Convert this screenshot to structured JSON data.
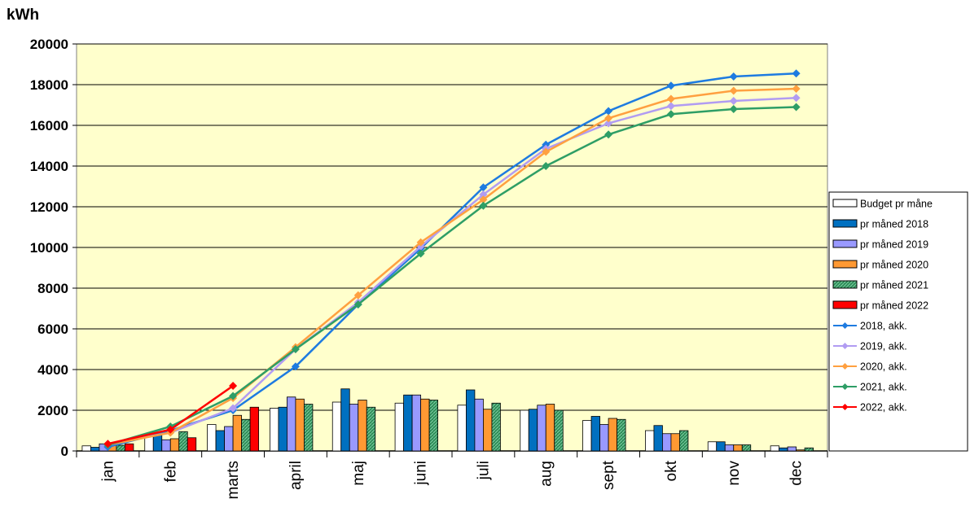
{
  "chart_data": {
    "type": "bar+line",
    "ylabel": "kWh",
    "ylim": [
      0,
      20000
    ],
    "yticks": [
      "0",
      "2000",
      "4000",
      "6000",
      "8000",
      "10000",
      "12000",
      "14000",
      "16000",
      "18000",
      "20000"
    ],
    "categories": [
      "jan",
      "feb",
      "marts",
      "april",
      "maj",
      "juni",
      "juli",
      "aug",
      "sept",
      "okt",
      "nov",
      "dec"
    ],
    "grid": true,
    "legend_position": "right",
    "plot_background": "#ffffcc",
    "bar_series": [
      {
        "name": "Budget pr måned",
        "color": "#ffffff",
        "values": [
          250,
          700,
          1300,
          2100,
          2400,
          2350,
          2250,
          2000,
          1500,
          1000,
          450,
          250
        ]
      },
      {
        "name": "pr måned 2018",
        "color": "#0070c0",
        "values": [
          180,
          800,
          1000,
          2150,
          3050,
          2750,
          3000,
          2050,
          1700,
          1250,
          450,
          150
        ]
      },
      {
        "name": "pr måned 2019",
        "color": "#9999ff",
        "values": [
          350,
          550,
          1200,
          2650,
          2300,
          2750,
          2550,
          2250,
          1300,
          850,
          300,
          200
        ]
      },
      {
        "name": "pr måned 2020",
        "color": "#ff9933",
        "values": [
          300,
          600,
          1750,
          2550,
          2500,
          2550,
          2050,
          2300,
          1600,
          850,
          300,
          50
        ]
      },
      {
        "name": "pr måned 2021",
        "color": "#2e8b57",
        "values": [
          280,
          950,
          1550,
          2300,
          2150,
          2500,
          2350,
          2000,
          1550,
          1000,
          300,
          150
        ]
      },
      {
        "name": "pr måned 2022",
        "color": "#ff0000",
        "values": [
          350,
          650,
          2150,
          null,
          null,
          null,
          null,
          null,
          null,
          null,
          null,
          null
        ]
      }
    ],
    "line_series": [
      {
        "name": "2018, akk.",
        "color": "#1e7be0",
        "values": [
          200,
          1000,
          2000,
          4150,
          7200,
          9950,
          12950,
          15050,
          16700,
          17950,
          18400,
          18550
        ]
      },
      {
        "name": "2019, akk.",
        "color": "#b19cf2",
        "values": [
          350,
          900,
          2100,
          5000,
          7300,
          10050,
          12600,
          14850,
          16100,
          16950,
          17200,
          17350
        ]
      },
      {
        "name": "2020, akk.",
        "color": "#ffa040",
        "values": [
          300,
          900,
          2600,
          5100,
          7650,
          10250,
          12350,
          14700,
          16350,
          17300,
          17700,
          17800
        ]
      },
      {
        "name": "2021, akk.",
        "color": "#2e9e66",
        "values": [
          300,
          1200,
          2700,
          5000,
          7200,
          9700,
          12050,
          14000,
          15550,
          16550,
          16800,
          16900
        ]
      },
      {
        "name": "2022, akk.",
        "color": "#ff0000",
        "values": [
          350,
          1050,
          3200,
          null,
          null,
          null,
          null,
          null,
          null,
          null,
          null,
          null
        ]
      }
    ],
    "legend": {
      "entries": [
        "Budget pr måne",
        "pr måned 2018",
        "pr måned 2019",
        "pr måned 2020",
        "pr måned 2021",
        "pr måned 2022",
        "2018, akk.",
        "2019, akk.",
        "2020, akk.",
        "2021, akk.",
        "2022, akk."
      ]
    }
  }
}
